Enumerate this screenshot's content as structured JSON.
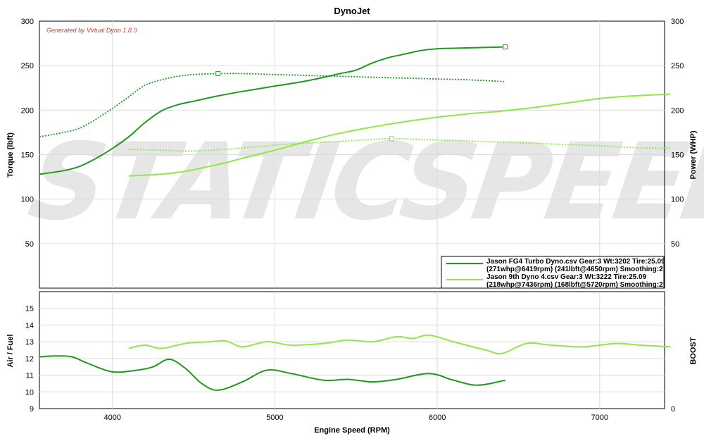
{
  "title": "DynoJet",
  "generated_by": "Generated by Virtual Dyno 1.8.3",
  "watermark": "STATICSPEED",
  "colors": {
    "run1": "#1f9a1f",
    "run2": "#8ee84a",
    "grid": "#dcdcdc",
    "generated_by": "#e23a2a"
  },
  "chart_data": [
    {
      "type": "line",
      "name": "main",
      "xlabel": "",
      "ylabel_left": "Torque (lbft)",
      "ylabel_right": "Power (WHP)",
      "xlim": [
        3550,
        7400
      ],
      "ylim": [
        0,
        300
      ],
      "xticks": [
        4000,
        5000,
        6000,
        7000
      ],
      "yticks_left": [
        50,
        100,
        150,
        200,
        250,
        300
      ],
      "yticks_right": [
        50,
        100,
        150,
        200,
        250,
        300
      ],
      "grid": true,
      "legend_position": "bottom-right",
      "legend": [
        {
          "line1": "Jason FG4 Turbo Dyno.csv Gear:3 Wt:3202 Tire:25.09",
          "line2": "(271whp@6419rpm) (241lbft@4650rpm) Smoothing:2",
          "color": "#1f9a1f"
        },
        {
          "line1": "Jason 9th Dyno 4.csv Gear:3 Wt:3222 Tire:25.09",
          "line2": "(218whp@7436rpm) (168lbft@5720rpm) Smoothing:2",
          "color": "#8ee84a"
        }
      ],
      "series": [
        {
          "run": 1,
          "quantity": "power",
          "style": "solid",
          "color": "#1f9a1f",
          "x": [
            3550,
            3700,
            3800,
            3900,
            4000,
            4100,
            4200,
            4300,
            4400,
            4500,
            4650,
            4800,
            5000,
            5200,
            5400,
            5500,
            5600,
            5700,
            5800,
            5900,
            6000,
            6200,
            6419
          ],
          "y": [
            128,
            132,
            137,
            146,
            157,
            170,
            186,
            199,
            206,
            210,
            216,
            221,
            227,
            233,
            241,
            245,
            253,
            259,
            263,
            267,
            269,
            270,
            271
          ],
          "marker": {
            "x": 6419,
            "y": 271
          }
        },
        {
          "run": 1,
          "quantity": "torque",
          "style": "dotted",
          "color": "#1f9a1f",
          "x": [
            3550,
            3700,
            3800,
            3900,
            4000,
            4100,
            4200,
            4300,
            4400,
            4500,
            4650,
            4800,
            5000,
            5200,
            5400,
            5600,
            5800,
            6000,
            6200,
            6419
          ],
          "y": [
            170,
            175,
            180,
            190,
            202,
            215,
            228,
            234,
            238,
            240,
            241,
            241,
            240,
            239,
            238,
            237,
            236,
            235,
            234,
            232
          ],
          "marker": {
            "x": 4650,
            "y": 241
          }
        },
        {
          "run": 2,
          "quantity": "power",
          "style": "solid",
          "color": "#8ee84a",
          "x": [
            4100,
            4200,
            4300,
            4400,
            4500,
            4600,
            4700,
            4800,
            5000,
            5200,
            5400,
            5600,
            5800,
            6000,
            6200,
            6400,
            6600,
            6800,
            7000,
            7200,
            7436
          ],
          "y": [
            126,
            127,
            128,
            130,
            133,
            137,
            141,
            146,
            155,
            165,
            174,
            181,
            187,
            192,
            196,
            199,
            203,
            208,
            213,
            216,
            218
          ]
        },
        {
          "run": 2,
          "quantity": "torque",
          "style": "dotted",
          "color": "#8ee84a",
          "x": [
            4100,
            4300,
            4500,
            4700,
            4900,
            5100,
            5300,
            5500,
            5720,
            5900,
            6100,
            6400,
            6700,
            7000,
            7200,
            7436
          ],
          "y": [
            156,
            155,
            154,
            156,
            159,
            162,
            164,
            166,
            168,
            167,
            166,
            164,
            162,
            160,
            158,
            157
          ],
          "marker": {
            "x": 5720,
            "y": 168
          }
        }
      ]
    },
    {
      "type": "line",
      "name": "air_fuel",
      "xlabel": "Engine Speed (RPM)",
      "ylabel_left": "Air / Fuel",
      "ylabel_right": "BOOST",
      "xlim": [
        3550,
        7400
      ],
      "ylim": [
        9,
        16
      ],
      "xticks": [
        4000,
        5000,
        6000,
        7000
      ],
      "yticks_left": [
        9,
        10,
        11,
        12,
        13,
        14,
        15
      ],
      "yticks_right": [
        0
      ],
      "grid": true,
      "series": [
        {
          "run": 1,
          "quantity": "air_fuel",
          "color": "#1f9a1f",
          "x": [
            3550,
            3650,
            3750,
            3850,
            4000,
            4150,
            4250,
            4350,
            4450,
            4550,
            4650,
            4800,
            4950,
            5100,
            5300,
            5450,
            5600,
            5750,
            5950,
            6100,
            6250,
            6419
          ],
          "y": [
            12.1,
            12.15,
            12.1,
            11.7,
            11.2,
            11.3,
            11.5,
            11.95,
            11.4,
            10.5,
            10.1,
            10.6,
            11.3,
            11.1,
            10.7,
            10.75,
            10.6,
            10.75,
            11.1,
            10.7,
            10.4,
            10.7
          ]
        },
        {
          "run": 2,
          "quantity": "air_fuel",
          "color": "#8ee84a",
          "x": [
            4100,
            4200,
            4300,
            4450,
            4600,
            4700,
            4800,
            4950,
            5100,
            5300,
            5450,
            5600,
            5750,
            5850,
            5950,
            6100,
            6300,
            6400,
            6550,
            6700,
            6900,
            7100,
            7250,
            7436
          ],
          "y": [
            12.6,
            12.8,
            12.6,
            12.9,
            13.0,
            13.05,
            12.7,
            13.0,
            12.8,
            12.9,
            13.1,
            13.0,
            13.3,
            13.2,
            13.4,
            13.0,
            12.5,
            12.3,
            12.9,
            12.8,
            12.7,
            12.9,
            12.8,
            12.7
          ]
        }
      ]
    }
  ]
}
